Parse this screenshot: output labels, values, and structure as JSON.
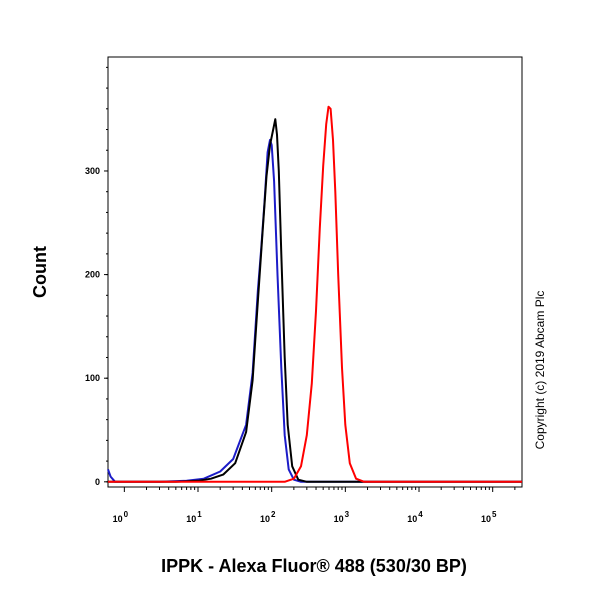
{
  "chart_data": {
    "type": "line",
    "title": "",
    "xlabel": "IPPK - Alexa Fluor® 488 (530/30 BP)",
    "ylabel": "Count",
    "xscale": "log",
    "xlim": [
      0.6,
      250000
    ],
    "ylim": [
      -5,
      410
    ],
    "grid": false,
    "legend": "none",
    "y_ticks": [
      {
        "value": 0,
        "label": "0"
      },
      {
        "value": 100,
        "label": "100"
      },
      {
        "value": 200,
        "label": "200"
      },
      {
        "value": 300,
        "label": "300"
      }
    ],
    "x_ticks": [
      {
        "value": 1,
        "base": "10",
        "exp": "0"
      },
      {
        "value": 10,
        "base": "10",
        "exp": "1"
      },
      {
        "value": 100,
        "base": "10",
        "exp": "2"
      },
      {
        "value": 1000,
        "base": "10",
        "exp": "3"
      },
      {
        "value": 10000,
        "base": "10",
        "exp": "4"
      },
      {
        "value": 100000,
        "base": "10",
        "exp": "5"
      }
    ],
    "series": [
      {
        "color": "#1c1cc8",
        "points": [
          [
            0.6,
            12
          ],
          [
            0.65,
            5
          ],
          [
            0.75,
            0
          ],
          [
            3,
            0
          ],
          [
            7,
            1
          ],
          [
            12,
            3
          ],
          [
            20,
            10
          ],
          [
            30,
            22
          ],
          [
            45,
            55
          ],
          [
            55,
            105
          ],
          [
            65,
            185
          ],
          [
            72,
            225
          ],
          [
            80,
            270
          ],
          [
            88,
            318
          ],
          [
            95,
            330
          ],
          [
            100,
            325
          ],
          [
            108,
            290
          ],
          [
            120,
            200
          ],
          [
            135,
            110
          ],
          [
            150,
            45
          ],
          [
            170,
            12
          ],
          [
            200,
            2
          ],
          [
            250,
            0
          ],
          [
            250000,
            0
          ]
        ]
      },
      {
        "color": "#000000",
        "points": [
          [
            0.6,
            0
          ],
          [
            5,
            0
          ],
          [
            10,
            1
          ],
          [
            15,
            3
          ],
          [
            22,
            7
          ],
          [
            32,
            18
          ],
          [
            45,
            48
          ],
          [
            55,
            98
          ],
          [
            65,
            175
          ],
          [
            75,
            240
          ],
          [
            85,
            295
          ],
          [
            95,
            325
          ],
          [
            105,
            340
          ],
          [
            112,
            350
          ],
          [
            118,
            335
          ],
          [
            125,
            300
          ],
          [
            135,
            220
          ],
          [
            150,
            120
          ],
          [
            165,
            55
          ],
          [
            190,
            15
          ],
          [
            230,
            2
          ],
          [
            300,
            0
          ],
          [
            250000,
            0
          ]
        ]
      },
      {
        "color": "#ff0000",
        "points": [
          [
            0.6,
            0
          ],
          [
            150,
            0
          ],
          [
            200,
            3
          ],
          [
            250,
            15
          ],
          [
            300,
            45
          ],
          [
            350,
            95
          ],
          [
            400,
            165
          ],
          [
            450,
            245
          ],
          [
            500,
            305
          ],
          [
            550,
            345
          ],
          [
            590,
            362
          ],
          [
            630,
            360
          ],
          [
            680,
            330
          ],
          [
            730,
            280
          ],
          [
            800,
            200
          ],
          [
            900,
            110
          ],
          [
            1000,
            55
          ],
          [
            1150,
            18
          ],
          [
            1400,
            3
          ],
          [
            1800,
            0
          ],
          [
            250000,
            0
          ]
        ]
      }
    ]
  },
  "copyright": "Copyright (c) 2019 Abcam Plc"
}
